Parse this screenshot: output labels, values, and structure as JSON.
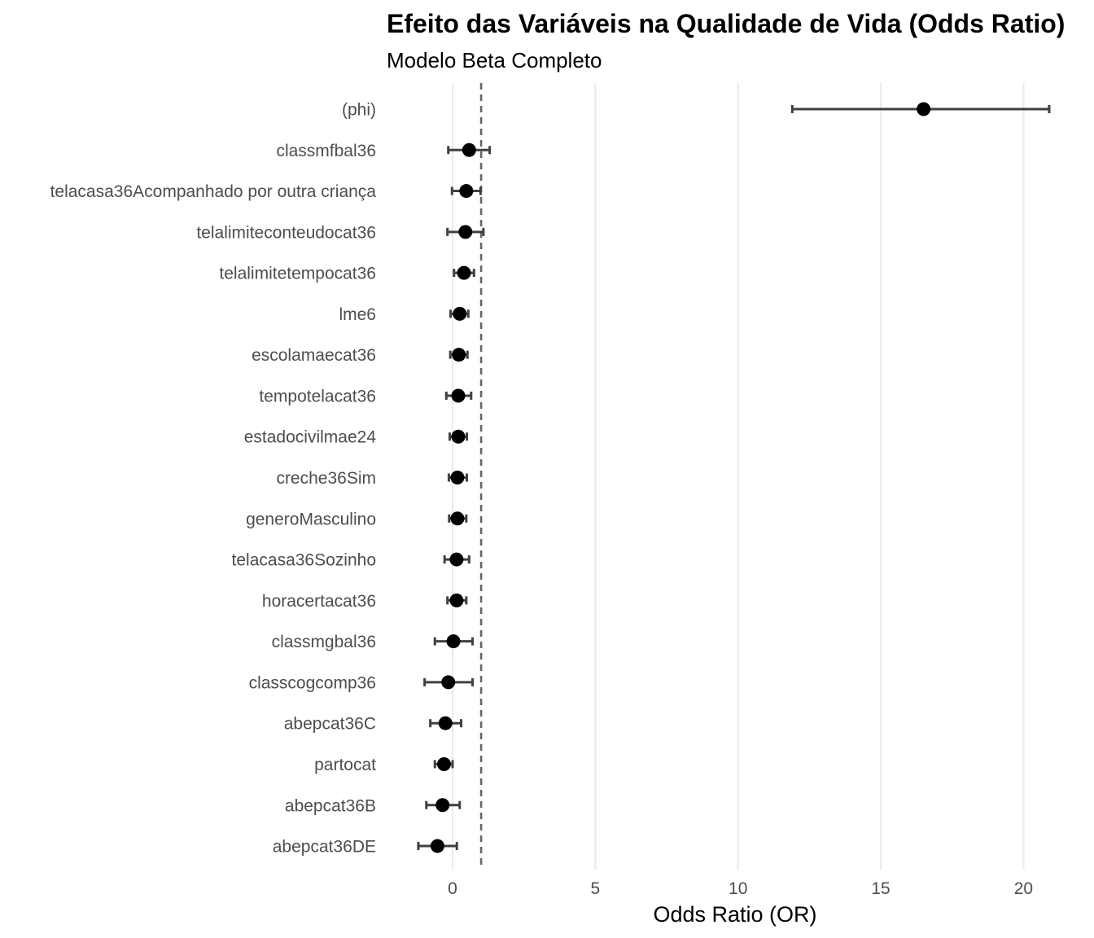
{
  "chart_data": {
    "type": "forest",
    "title": "Efeito das Variáveis na Qualidade de Vida (Odds Ratio)",
    "subtitle": "Modelo Beta Completo",
    "xlabel": "Odds Ratio (OR)",
    "ylabel": "",
    "xlim": [
      -2.3,
      22.2
    ],
    "xticks": [
      0,
      5,
      10,
      15,
      20
    ],
    "reference_line": 1,
    "grid": "vertical major",
    "colors": {
      "point": "#000000",
      "errorbar": "#404040",
      "grid": "#ebebeb",
      "reference": "#666666"
    },
    "rows": [
      {
        "label": "(phi)",
        "or": 16.5,
        "lower": 11.9,
        "upper": 20.9
      },
      {
        "label": "classmfbal36",
        "or": 0.58,
        "lower": -0.15,
        "upper": 1.3
      },
      {
        "label": "telacasa36Acompanhado por outra criança",
        "or": 0.48,
        "lower": -0.02,
        "upper": 0.98
      },
      {
        "label": "telalimiteconteudocat36",
        "or": 0.45,
        "lower": -0.18,
        "upper": 1.08
      },
      {
        "label": "telalimitetempocat36",
        "or": 0.4,
        "lower": 0.05,
        "upper": 0.75
      },
      {
        "label": "lme6",
        "or": 0.25,
        "lower": -0.07,
        "upper": 0.55
      },
      {
        "label": "escolamaecat36",
        "or": 0.22,
        "lower": -0.08,
        "upper": 0.52
      },
      {
        "label": "tempotelacat36",
        "or": 0.2,
        "lower": -0.22,
        "upper": 0.65
      },
      {
        "label": "estadocivilmae24",
        "or": 0.2,
        "lower": -0.1,
        "upper": 0.5
      },
      {
        "label": "creche36Sim",
        "or": 0.17,
        "lower": -0.13,
        "upper": 0.5
      },
      {
        "label": "generoMasculino",
        "or": 0.17,
        "lower": -0.12,
        "upper": 0.48
      },
      {
        "label": "telacasa36Sozinho",
        "or": 0.14,
        "lower": -0.28,
        "upper": 0.58
      },
      {
        "label": "horacertacat36",
        "or": 0.14,
        "lower": -0.18,
        "upper": 0.48
      },
      {
        "label": "classmgbal36",
        "or": 0.03,
        "lower": -0.62,
        "upper": 0.7
      },
      {
        "label": "classcogcomp36",
        "or": -0.15,
        "lower": -0.98,
        "upper": 0.7
      },
      {
        "label": "abepcat36C",
        "or": -0.25,
        "lower": -0.78,
        "upper": 0.3
      },
      {
        "label": "partocat",
        "or": -0.3,
        "lower": -0.62,
        "upper": 0.0
      },
      {
        "label": "abepcat36B",
        "or": -0.35,
        "lower": -0.92,
        "upper": 0.25
      },
      {
        "label": "abepcat36DE",
        "or": -0.53,
        "lower": -1.2,
        "upper": 0.15
      }
    ]
  }
}
